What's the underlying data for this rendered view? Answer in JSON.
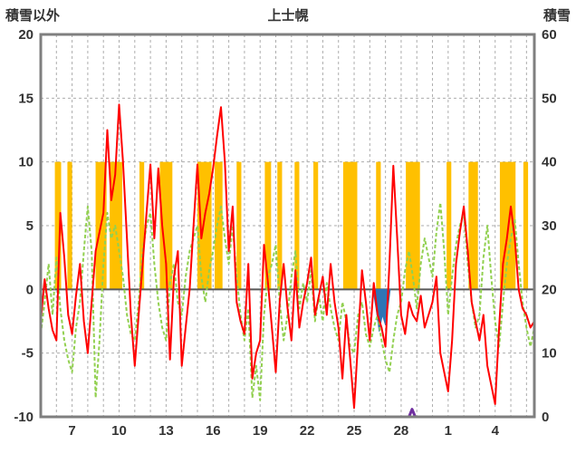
{
  "header": {
    "left_axis_title": "積雪以外",
    "chart_title": "上士幌",
    "right_axis_title": "積雪"
  },
  "chart_data": {
    "type": "line",
    "title": "上士幌",
    "subtitle": "",
    "left_axis": {
      "title": "積雪以外",
      "min": -10,
      "max": 20,
      "tick_step": 5,
      "ticks": [
        20,
        15,
        10,
        5,
        0,
        -5,
        -10
      ]
    },
    "right_axis": {
      "title": "積雪",
      "min": 0,
      "max": 60,
      "tick_step": 10,
      "ticks": [
        60,
        50,
        40,
        30,
        20,
        10,
        0
      ]
    },
    "x_range": [
      5,
      36.5
    ],
    "x_gridline_step": 1,
    "x_tick_days": [
      7,
      10,
      13,
      16,
      19,
      22,
      25,
      28,
      31,
      34
    ],
    "x_tick_labels": [
      "7",
      "10",
      "13",
      "16",
      "19",
      "22",
      "25",
      "28",
      "1",
      "4"
    ],
    "grid": {
      "on": true,
      "color": "#ADADAD",
      "zero_line_color": "#595959",
      "frame_color": "#7F7F7F"
    },
    "legend": {
      "visible": false
    },
    "series": {
      "x_start": 5,
      "x_step": 0.25,
      "red_line": {
        "name": "red-series",
        "color": "#FF0000",
        "axis": "left",
        "values": [
          -2.5,
          0.8,
          -1.5,
          -3.2,
          -4,
          6,
          2.5,
          -2,
          -3.5,
          -0.5,
          2,
          -2.5,
          -5,
          -1,
          3,
          4.5,
          6,
          12.5,
          7,
          9,
          14.5,
          10,
          4,
          -2,
          -6,
          -2,
          2,
          6,
          9.8,
          4,
          9.5,
          5,
          2,
          -5.5,
          1,
          3,
          -6,
          -3,
          0,
          5,
          9.8,
          4,
          6,
          7.5,
          9.5,
          12,
          14.3,
          10,
          3,
          6.5,
          -1,
          -2.5,
          -3.5,
          2,
          -7,
          -5,
          -4,
          3.5,
          0.5,
          -3,
          -6.5,
          -1,
          2,
          -1.5,
          -4,
          1.5,
          -3,
          -1,
          0.5,
          2.5,
          -2,
          -0.5,
          1,
          -2,
          2,
          -1,
          -3,
          -7,
          -2,
          -5.5,
          -9.3,
          -4,
          1.5,
          -1,
          -4,
          0.5,
          -2,
          -3,
          -4.5,
          2,
          9.7,
          4,
          -2,
          -3.5,
          -1,
          -2,
          -2.5,
          -0.5,
          -3,
          -2,
          -1,
          1,
          -5,
          -6.5,
          -8,
          -4,
          2,
          4.5,
          6.5,
          3,
          -1,
          -2.5,
          -4,
          -2,
          -6,
          -7.5,
          -9,
          -3,
          2,
          4,
          6.5,
          4,
          0,
          -1.5,
          -2,
          -3,
          -2.5
        ]
      },
      "green_line": {
        "name": "green-series",
        "color": "#92D050",
        "axis": "left",
        "dashed": true,
        "values": [
          -3.5,
          -1,
          2,
          -2,
          2.5,
          -1.5,
          -4,
          -5.5,
          -6.5,
          -3,
          -1,
          3,
          6.5,
          3,
          -8.5,
          -4,
          2,
          6,
          4,
          5,
          3,
          1,
          -2,
          -3.5,
          -4,
          -1,
          3,
          5,
          6,
          2,
          -1,
          -3,
          -4,
          0.5,
          2,
          -1,
          -2,
          1,
          3,
          4,
          5,
          1,
          -1,
          1.5,
          3,
          5,
          6.5,
          4,
          2,
          5,
          1,
          -2,
          -4,
          -1.5,
          -8.5,
          -6,
          -8.7,
          -2,
          1,
          2,
          3.5,
          -1,
          -4,
          -2,
          1,
          3,
          -1.5,
          0.5,
          -1,
          1.5,
          -2.5,
          -0.5,
          -2.5,
          0.5,
          -1.5,
          -3,
          -4,
          -1,
          -2.5,
          -4.5,
          -5,
          -2,
          -1,
          -3.5,
          -4.5,
          -3,
          -2,
          -4,
          -5.5,
          -6.5,
          -4,
          -2,
          -1,
          1.5,
          3,
          1,
          -1.5,
          2,
          4,
          2.5,
          1,
          4.5,
          6.8,
          3,
          -2,
          1,
          3.5,
          5,
          6,
          2,
          -1,
          -3,
          -2,
          2.5,
          5,
          1,
          -2.5,
          -4.5,
          -1,
          2,
          4,
          5.5,
          2,
          -1,
          -3,
          -4.5,
          -3
        ]
      },
      "orange_bars": {
        "name": "orange-interval-bars",
        "color": "#FFC000",
        "axis": "left",
        "bar_top_value": 10,
        "bar_bottom_value": 0,
        "intervals": [
          [
            5.9,
            6.3
          ],
          [
            6.7,
            7.0
          ],
          [
            8.5,
            9.2
          ],
          [
            9.4,
            10.2
          ],
          [
            11.3,
            11.6
          ],
          [
            12.6,
            13.4
          ],
          [
            15.0,
            15.9
          ],
          [
            16.1,
            16.6
          ],
          [
            17.5,
            17.8
          ],
          [
            19.3,
            19.7
          ],
          [
            20.1,
            20.4
          ],
          [
            21.2,
            21.5
          ],
          [
            22.4,
            22.7
          ],
          [
            24.3,
            25.2
          ],
          [
            26.4,
            26.7
          ],
          [
            28.3,
            29.2
          ],
          [
            30.9,
            31.2
          ],
          [
            32.3,
            32.9
          ],
          [
            34.3,
            35.3
          ],
          [
            35.8,
            36.1
          ]
        ]
      },
      "blue_area": {
        "name": "blue-negative-area",
        "color": "#2E75B6",
        "axis": "left",
        "points": [
          [
            26.2,
            0
          ],
          [
            26.4,
            -1.5
          ],
          [
            26.6,
            -3.3
          ],
          [
            26.8,
            -2.0
          ],
          [
            27.0,
            -2.8
          ],
          [
            27.2,
            -1.0
          ],
          [
            27.3,
            0
          ]
        ]
      },
      "purple_snow_line": {
        "name": "snow-depth-series",
        "color": "#7030A0",
        "axis": "right",
        "points": [
          [
            5,
            0
          ],
          [
            28.5,
            0
          ],
          [
            28.7,
            1.2
          ],
          [
            28.9,
            0
          ],
          [
            36.5,
            0
          ]
        ]
      }
    }
  }
}
